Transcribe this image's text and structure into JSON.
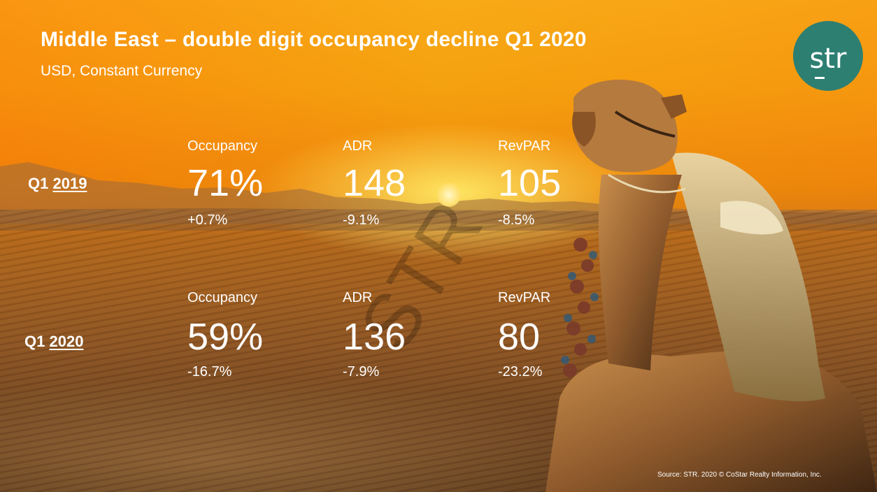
{
  "slide": {
    "title": "Middle East – double digit occupancy decline Q1 2020",
    "subtitle": "USD, Constant Currency",
    "logo_text": "str",
    "watermark": "STR",
    "source": "Source: STR. 2020 © CoStar Realty Information, Inc."
  },
  "rows": [
    {
      "period": "Q1",
      "year": "2019",
      "metrics": [
        {
          "label": "Occupancy",
          "value": "71%",
          "change": "+0.7%"
        },
        {
          "label": "ADR",
          "value": "148",
          "change": "-9.1%"
        },
        {
          "label": "RevPAR",
          "value": "105",
          "change": "-8.5%"
        }
      ]
    },
    {
      "period": "Q1",
      "year": "2020",
      "metrics": [
        {
          "label": "Occupancy",
          "value": "59%",
          "change": "-16.7%"
        },
        {
          "label": "ADR",
          "value": "136",
          "change": "-7.9%"
        },
        {
          "label": "RevPAR",
          "value": "80",
          "change": "-23.2%"
        }
      ]
    }
  ],
  "colors": {
    "logo_background": "#2d7f72",
    "text": "#ffffff",
    "sky": "#f39a12",
    "ground": "#8a5222"
  },
  "background_image": "desert sunset with resting camel"
}
